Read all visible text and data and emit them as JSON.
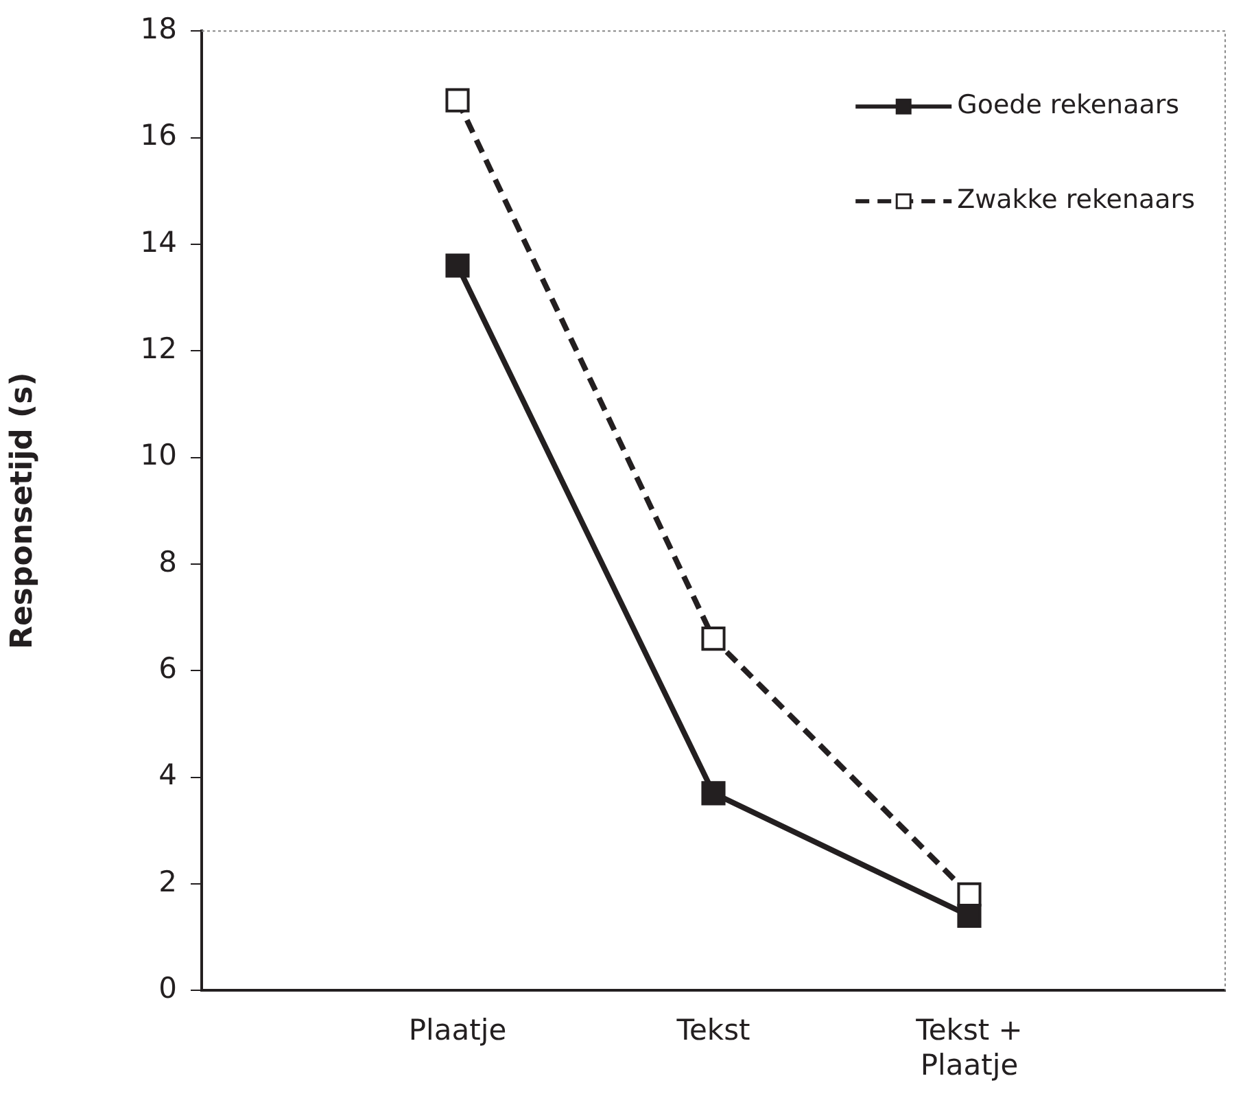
{
  "chart_data": {
    "type": "line",
    "ylabel": "Responsetijd (s)",
    "categories": [
      null,
      "Plaatje",
      "Tekst",
      "Tekst + Plaatje",
      null
    ],
    "series": [
      {
        "name": "Goede rekenaars",
        "color": "#231f20",
        "values": [
          null,
          13.6,
          3.7,
          1.4,
          null
        ],
        "line_style": "solid"
      },
      {
        "name": "Zwakke rekenaars",
        "color": "#231f20",
        "values": [
          null,
          16.7,
          6.6,
          1.8,
          null
        ],
        "line_style": "dashed"
      }
    ],
    "ylim": [
      0,
      18
    ],
    "yticks": [
      0,
      2,
      4,
      6,
      8,
      10,
      12,
      14,
      16,
      18
    ],
    "grid": false,
    "legend": "top right",
    "marker": "square"
  }
}
